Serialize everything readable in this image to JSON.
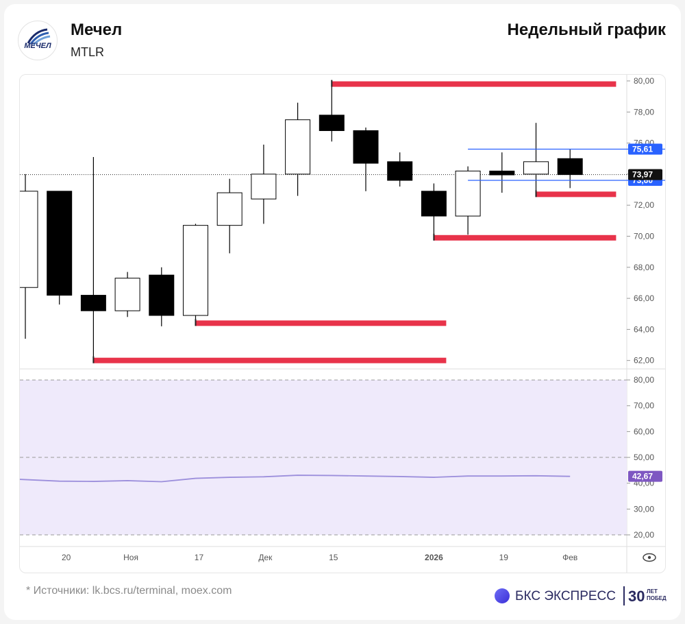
{
  "header": {
    "logo_text": "МЕЧЕЛ",
    "company": "Мечел",
    "ticker": "MTLR",
    "chart_title": "Недельный график"
  },
  "footer": {
    "sources": "* Источники: lk.bcs.ru/terminal, moex.com",
    "brand_name": "БКС ЭКСПРЕСС",
    "brand_years": "30",
    "brand_small_1": "ЛЕТ",
    "brand_small_2": "ПОБЕД"
  },
  "colors": {
    "bear": "#000000",
    "bull": "#ffffff",
    "candle_outline": "#000000",
    "red_level": "#e8334a",
    "blue_level": "#2962ff",
    "rsi_line": "#9c8fdc",
    "rsi_band": "#efeafb",
    "rsi_badge": "#7e57c2",
    "axis_text": "#555555",
    "grid": "#eeeeee"
  },
  "chart_data": [
    {
      "type": "candlestick",
      "x_labels": [
        "20",
        "Ноя",
        "17",
        "Дек",
        "15",
        "2026",
        "19",
        "Фев"
      ],
      "y_ticks": [
        "80,00",
        "78,00",
        "76,00",
        "74,00",
        "72,00",
        "70,00",
        "68,00",
        "66,00",
        "64,00",
        "62,00"
      ],
      "ylim": [
        61.5,
        80.4
      ],
      "candles": [
        {
          "open": 66.7,
          "high": 74.0,
          "low": 63.4,
          "close": 72.9
        },
        {
          "open": 72.9,
          "high": 72.9,
          "low": 65.6,
          "close": 66.2
        },
        {
          "open": 66.2,
          "high": 75.1,
          "low": 62.0,
          "close": 65.2
        },
        {
          "open": 65.2,
          "high": 67.7,
          "low": 64.8,
          "close": 67.3
        },
        {
          "open": 67.5,
          "high": 68.0,
          "low": 64.2,
          "close": 64.9
        },
        {
          "open": 64.9,
          "high": 70.8,
          "low": 64.4,
          "close": 70.7
        },
        {
          "open": 70.7,
          "high": 73.7,
          "low": 68.9,
          "close": 72.8
        },
        {
          "open": 72.4,
          "high": 75.9,
          "low": 70.8,
          "close": 74.0
        },
        {
          "open": 74.0,
          "high": 78.6,
          "low": 72.6,
          "close": 77.5
        },
        {
          "open": 77.8,
          "high": 80.0,
          "low": 76.1,
          "close": 76.8
        },
        {
          "open": 76.8,
          "high": 77.0,
          "low": 72.9,
          "close": 74.7
        },
        {
          "open": 74.8,
          "high": 75.4,
          "low": 73.2,
          "close": 73.6
        },
        {
          "open": 72.9,
          "high": 73.4,
          "low": 70.0,
          "close": 71.3
        },
        {
          "open": 71.3,
          "high": 74.5,
          "low": 70.1,
          "close": 74.2
        },
        {
          "open": 74.2,
          "high": 75.4,
          "low": 72.8,
          "close": 73.95
        },
        {
          "open": 74.0,
          "high": 77.3,
          "low": 72.6,
          "close": 74.8
        },
        {
          "open": 75.0,
          "high": 75.6,
          "low": 73.1,
          "close": 73.97
        }
      ],
      "levels": [
        {
          "value": 79.8,
          "from_candle": 9,
          "to_candle": 16.99,
          "color": "red"
        },
        {
          "value": 62.0,
          "from_candle": 2,
          "to_candle": 12,
          "color": "red"
        },
        {
          "value": 64.4,
          "from_candle": 5,
          "to_candle": 12,
          "color": "red"
        },
        {
          "value": 69.9,
          "from_candle": 12,
          "to_candle": 16.99,
          "color": "red"
        },
        {
          "value": 72.7,
          "from_candle": 15,
          "to_candle": 16.99,
          "color": "red"
        },
        {
          "value": 75.61,
          "from_candle": 13,
          "to_candle": 17.8,
          "color": "blue"
        },
        {
          "value": 73.6,
          "from_candle": 13,
          "to_candle": 17.8,
          "color": "blue"
        }
      ],
      "last_price": {
        "value": 73.97,
        "label": "73,97"
      },
      "level_labels": [
        {
          "value": 75.61,
          "label": "75,61"
        },
        {
          "value": 73.6,
          "label": "73,60"
        }
      ]
    },
    {
      "type": "line",
      "name": "RSI",
      "y_ticks": [
        "80,00",
        "70,00",
        "60,00",
        "50,00",
        "40,00",
        "30,00",
        "20,00"
      ],
      "ylim": [
        15.5,
        84
      ],
      "band": [
        20,
        80
      ],
      "dashed_levels": [
        80,
        50,
        20
      ],
      "values": [
        41.5,
        40.8,
        40.7,
        41.0,
        40.6,
        41.9,
        42.3,
        42.5,
        43.1,
        43.0,
        42.8,
        42.6,
        42.3,
        42.8,
        42.8,
        42.9,
        42.67
      ],
      "last": {
        "value": 42.67,
        "label": "42,67"
      }
    }
  ]
}
